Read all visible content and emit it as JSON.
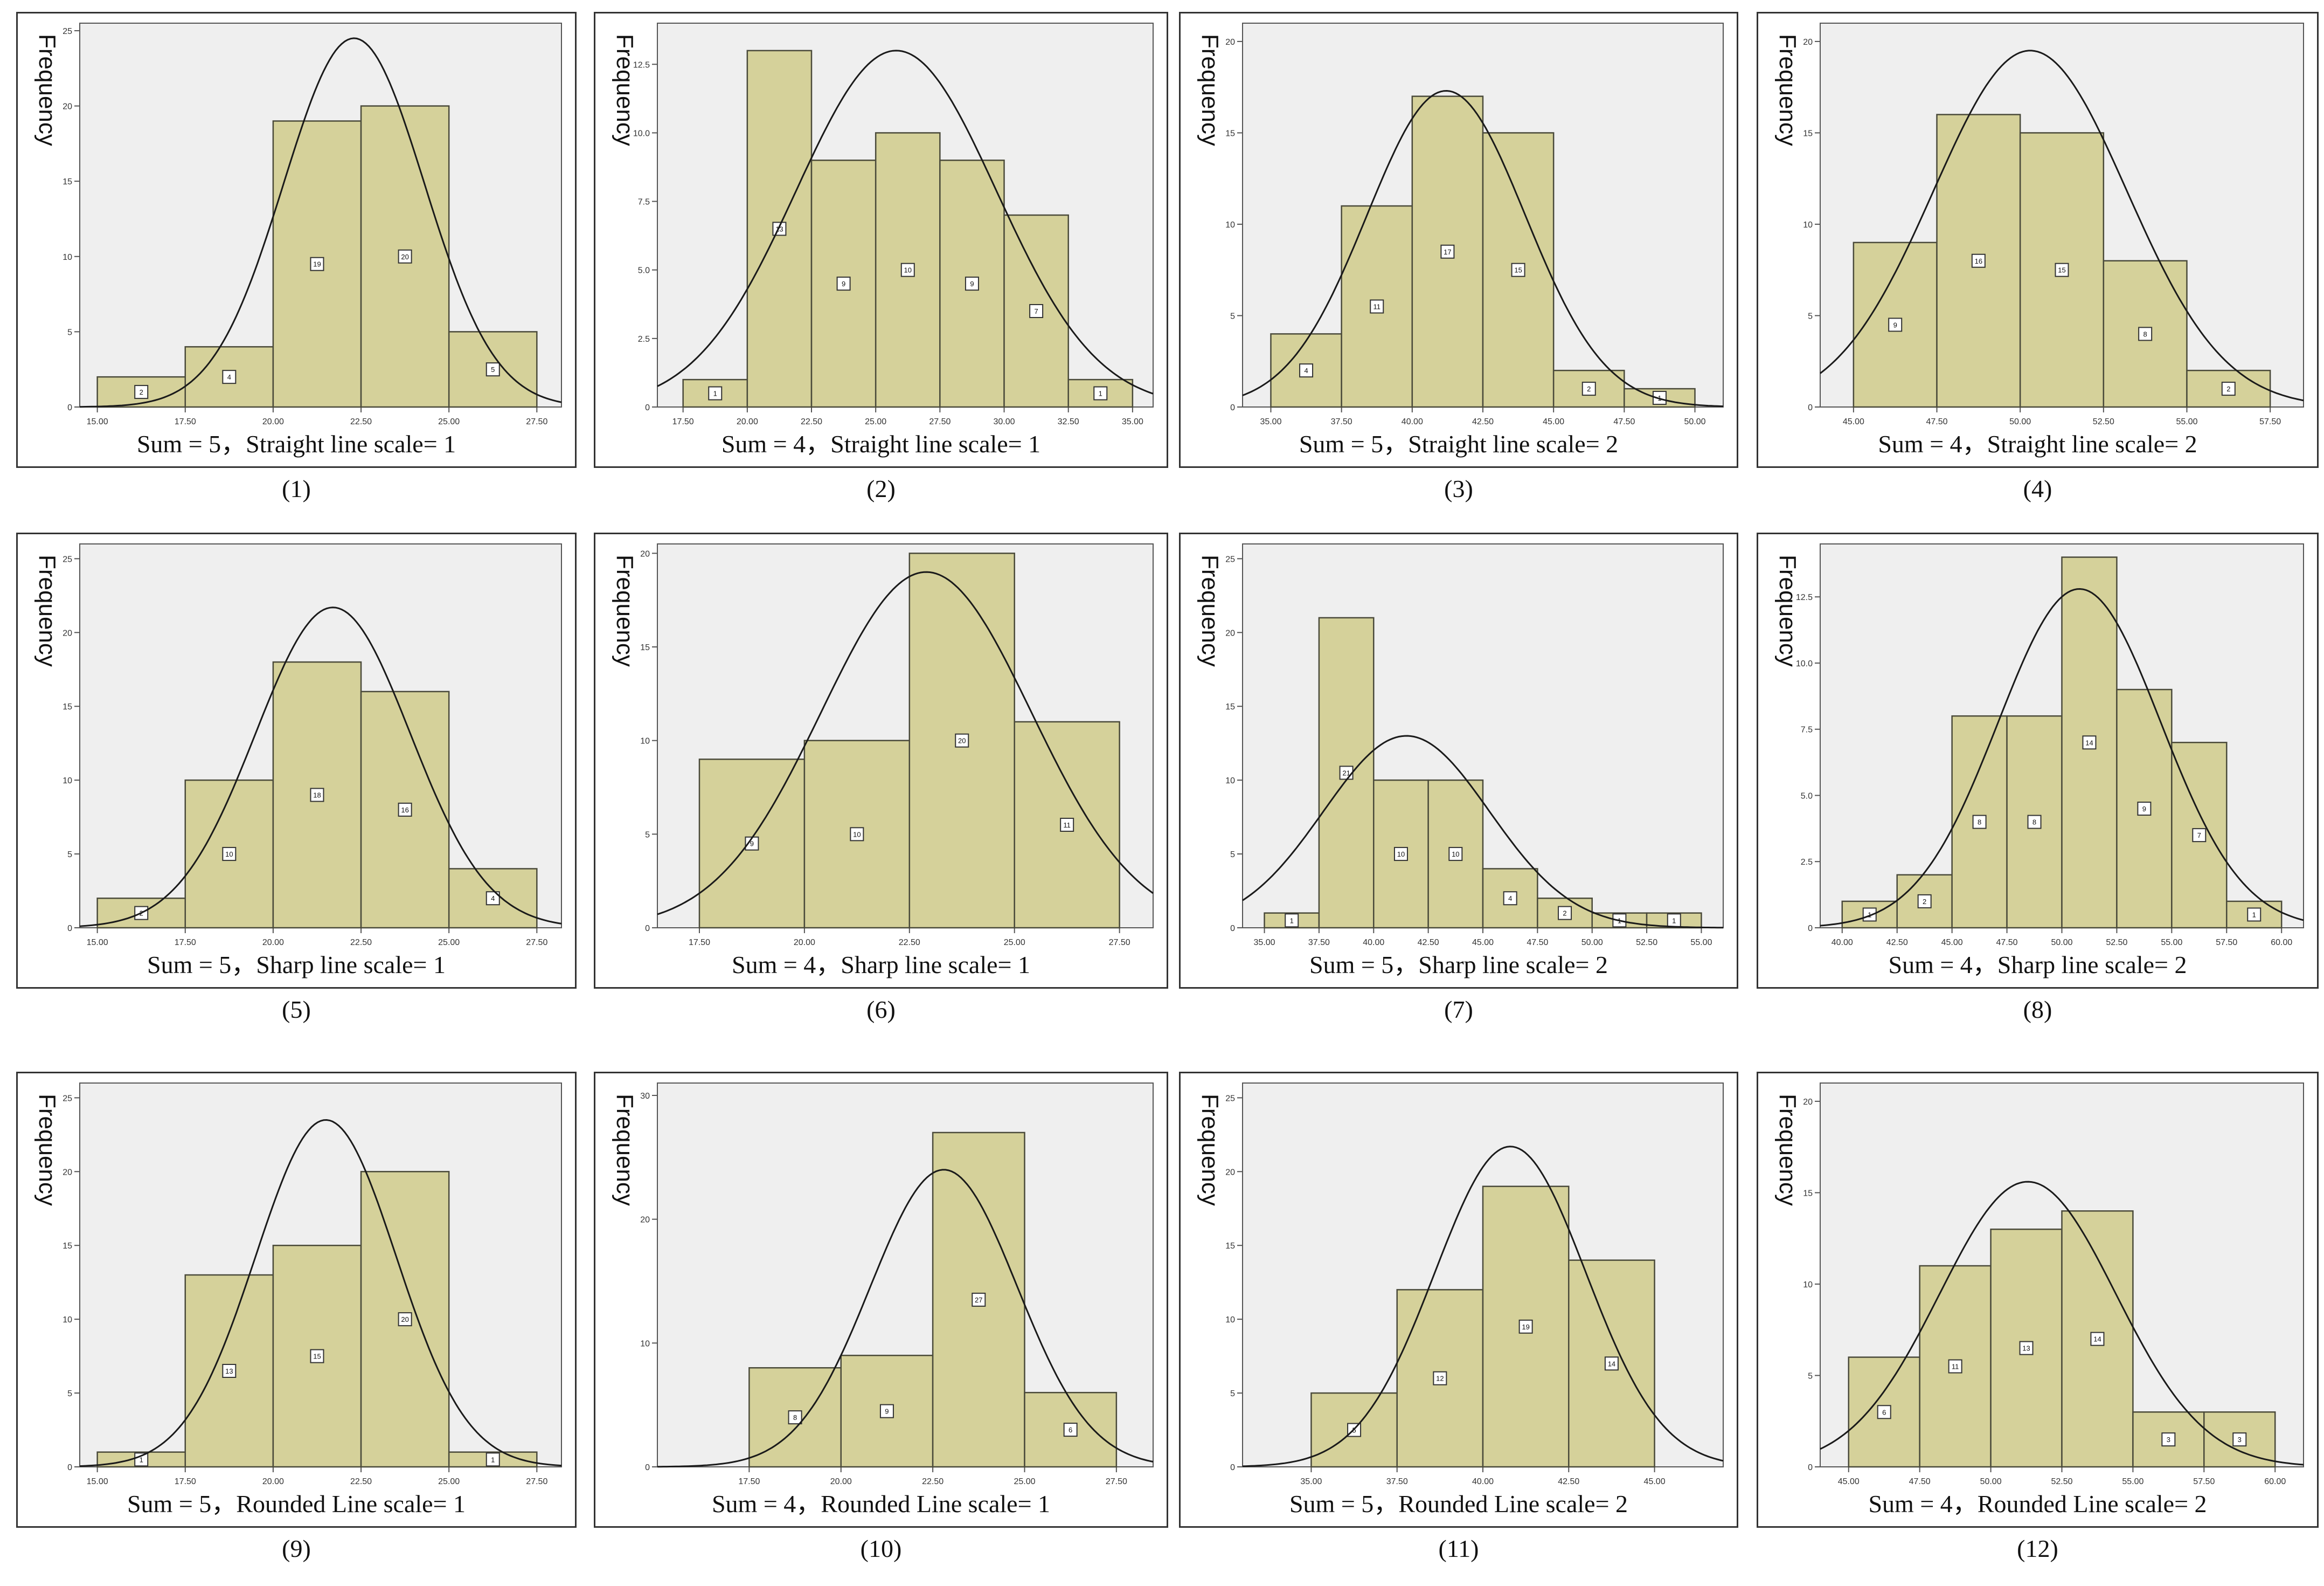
{
  "figure": {
    "colors": {
      "bar_fill": "#d5d19a",
      "bar_stroke": "#4a4a3a",
      "plot_bg": "#efefef",
      "curve": "#1a1a1a",
      "axis": "#555555",
      "frame": "#333333"
    },
    "y_axis_label": "Frequency"
  },
  "panels": [
    {
      "number": "(1)",
      "caption": "Sum = 5，Straight line scale= 1"
    },
    {
      "number": "(2)",
      "caption": "Sum = 4，Straight line scale= 1"
    },
    {
      "number": "(3)",
      "caption": "Sum = 5，Straight line scale= 2"
    },
    {
      "number": "(4)",
      "caption": "Sum = 4，Straight line scale= 2"
    },
    {
      "number": "(5)",
      "caption": "Sum = 5，Sharp line scale= 1"
    },
    {
      "number": "(6)",
      "caption": "Sum = 4，Sharp line scale= 1"
    },
    {
      "number": "(7)",
      "caption": "Sum = 5，Sharp line scale= 2"
    },
    {
      "number": "(8)",
      "caption": "Sum = 4，Sharp line scale= 2"
    },
    {
      "number": "(9)",
      "caption": "Sum = 5，Rounded Line scale= 1"
    },
    {
      "number": "(10)",
      "caption": "Sum = 4，Rounded Line scale= 1"
    },
    {
      "number": "(11)",
      "caption": "Sum = 5，Rounded Line scale= 2"
    },
    {
      "number": "(12)",
      "caption": "Sum = 4，Rounded Line scale= 2"
    }
  ],
  "chart_data": [
    {
      "type": "bar",
      "panel": "(1)",
      "ylabel": "Frequency",
      "xlim": [
        14.5,
        28.2
      ],
      "ylim": [
        0,
        25.5
      ],
      "xticks": [
        "15.00",
        "17.50",
        "20.00",
        "22.50",
        "25.00",
        "27.50"
      ],
      "xtick_values": [
        15,
        17.5,
        20,
        22.5,
        25,
        27.5
      ],
      "yticks": [
        "0",
        "5",
        "10",
        "15",
        "20",
        "25"
      ],
      "ytick_values": [
        0,
        5,
        10,
        15,
        20,
        25
      ],
      "bin_edges": [
        15,
        17.5,
        20,
        22.5,
        25,
        27.5
      ],
      "values": [
        2,
        4,
        19,
        20,
        5
      ],
      "value_labels": [
        "2",
        "4",
        "19",
        "20",
        "5"
      ],
      "curve": {
        "mean": 22.3,
        "sd": 2.0,
        "peak": 24.5
      }
    },
    {
      "type": "bar",
      "panel": "(2)",
      "ylabel": "Frequency",
      "xlim": [
        16.5,
        35.8
      ],
      "ylim": [
        0,
        14
      ],
      "xticks": [
        "17.50",
        "20.00",
        "22.50",
        "25.00",
        "27.50",
        "30.00",
        "32.50",
        "35.00"
      ],
      "xtick_values": [
        17.5,
        20,
        22.5,
        25,
        27.5,
        30,
        32.5,
        35
      ],
      "yticks": [
        "0",
        "2.5",
        "5.0",
        "7.5",
        "10.0",
        "12.5"
      ],
      "ytick_values": [
        0,
        2.5,
        5,
        7.5,
        10,
        12.5
      ],
      "bin_edges": [
        17.5,
        20,
        22.5,
        25,
        27.5,
        30,
        32.5,
        35
      ],
      "values": [
        1,
        13,
        9,
        10,
        9,
        7,
        1
      ],
      "value_labels": [
        "1",
        "13",
        "9",
        "10",
        "9",
        "7",
        "1"
      ],
      "curve": {
        "mean": 25.8,
        "sd": 3.9,
        "peak": 13.0
      }
    },
    {
      "type": "bar",
      "panel": "(3)",
      "ylabel": "Frequency",
      "xlim": [
        34.0,
        51.0
      ],
      "ylim": [
        0,
        21
      ],
      "xticks": [
        "35.00",
        "37.50",
        "40.00",
        "42.50",
        "45.00",
        "47.50",
        "50.00"
      ],
      "xtick_values": [
        35,
        37.5,
        40,
        42.5,
        45,
        47.5,
        50
      ],
      "yticks": [
        "0",
        "5",
        "10",
        "15",
        "20"
      ],
      "ytick_values": [
        0,
        5,
        10,
        15,
        20
      ],
      "bin_edges": [
        35,
        37.5,
        40,
        42.5,
        45,
        47.5,
        50
      ],
      "values": [
        4,
        11,
        17,
        15,
        2,
        1
      ],
      "value_labels": [
        "4",
        "11",
        "17",
        "15",
        "2",
        "1"
      ],
      "curve": {
        "mean": 41.2,
        "sd": 2.8,
        "peak": 17.3
      }
    },
    {
      "type": "bar",
      "panel": "(4)",
      "ylabel": "Frequency",
      "xlim": [
        44.0,
        58.5
      ],
      "ylim": [
        0,
        21
      ],
      "xticks": [
        "45.00",
        "47.50",
        "50.00",
        "52.50",
        "55.00",
        "57.50"
      ],
      "xtick_values": [
        45,
        47.5,
        50,
        52.5,
        55,
        57.5
      ],
      "yticks": [
        "0",
        "5",
        "10",
        "15",
        "20"
      ],
      "ytick_values": [
        0,
        5,
        10,
        15,
        20
      ],
      "bin_edges": [
        45,
        47.5,
        50,
        52.5,
        55,
        57.5
      ],
      "values": [
        9,
        16,
        15,
        8,
        2
      ],
      "value_labels": [
        "9",
        "16",
        "15",
        "8",
        "2"
      ],
      "curve": {
        "mean": 50.3,
        "sd": 2.9,
        "peak": 19.5
      }
    },
    {
      "type": "bar",
      "panel": "(5)",
      "ylabel": "Frequency",
      "xlim": [
        14.5,
        28.2
      ],
      "ylim": [
        0,
        26
      ],
      "xticks": [
        "15.00",
        "17.50",
        "20.00",
        "22.50",
        "25.00",
        "27.50"
      ],
      "xtick_values": [
        15,
        17.5,
        20,
        22.5,
        25,
        27.5
      ],
      "yticks": [
        "0",
        "5",
        "10",
        "15",
        "20",
        "25"
      ],
      "ytick_values": [
        0,
        5,
        10,
        15,
        20,
        25
      ],
      "bin_edges": [
        15,
        17.5,
        20,
        22.5,
        25,
        27.5
      ],
      "values": [
        2,
        10,
        18,
        16,
        4
      ],
      "value_labels": [
        "2",
        "10",
        "18",
        "16",
        "4"
      ],
      "curve": {
        "mean": 21.7,
        "sd": 2.2,
        "peak": 21.7
      }
    },
    {
      "type": "bar",
      "panel": "(6)",
      "ylabel": "Frequency",
      "xlim": [
        16.5,
        28.3
      ],
      "ylim": [
        0,
        20.5
      ],
      "xticks": [
        "17.50",
        "20.00",
        "22.50",
        "25.00",
        "27.50"
      ],
      "xtick_values": [
        17.5,
        20,
        22.5,
        25,
        27.5
      ],
      "yticks": [
        "0",
        "5",
        "10",
        "15",
        "20"
      ],
      "ytick_values": [
        0,
        5,
        10,
        15,
        20
      ],
      "bin_edges": [
        17.5,
        20,
        22.5,
        25,
        27.5
      ],
      "values": [
        9,
        10,
        20,
        11
      ],
      "value_labels": [
        "9",
        "10",
        "20",
        "11"
      ],
      "curve": {
        "mean": 22.9,
        "sd": 2.5,
        "peak": 19.0
      }
    },
    {
      "type": "bar",
      "panel": "(7)",
      "ylabel": "Frequency",
      "xlim": [
        34.0,
        56.0
      ],
      "ylim": [
        0,
        26
      ],
      "xticks": [
        "35.00",
        "37.50",
        "40.00",
        "42.50",
        "45.00",
        "47.50",
        "50.00",
        "52.50",
        "55.00"
      ],
      "xtick_values": [
        35,
        37.5,
        40,
        42.5,
        45,
        47.5,
        50,
        52.5,
        55
      ],
      "yticks": [
        "0",
        "5",
        "10",
        "15",
        "20",
        "25"
      ],
      "ytick_values": [
        0,
        5,
        10,
        15,
        20,
        25
      ],
      "bin_edges": [
        35,
        37.5,
        40,
        42.5,
        45,
        47.5,
        50,
        52.5,
        55
      ],
      "values": [
        1,
        21,
        10,
        10,
        4,
        2,
        1,
        1
      ],
      "value_labels": [
        "1",
        "21",
        "10",
        "10",
        "4",
        "2",
        "1",
        "1"
      ],
      "curve": {
        "mean": 41.5,
        "sd": 3.8,
        "peak": 13.0
      }
    },
    {
      "type": "bar",
      "panel": "(8)",
      "ylabel": "Frequency",
      "xlim": [
        39.0,
        61.0
      ],
      "ylim": [
        0,
        14.5
      ],
      "xticks": [
        "40.00",
        "42.50",
        "45.00",
        "47.50",
        "50.00",
        "52.50",
        "55.00",
        "57.50",
        "60.00"
      ],
      "xtick_values": [
        40,
        42.5,
        45,
        47.5,
        50,
        52.5,
        55,
        57.5,
        60
      ],
      "yticks": [
        "0",
        "2.5",
        "5.0",
        "7.5",
        "10.0",
        "12.5"
      ],
      "ytick_values": [
        0,
        2.5,
        5,
        7.5,
        10,
        12.5
      ],
      "bin_edges": [
        40,
        42.5,
        45,
        47.5,
        50,
        52.5,
        55,
        57.5,
        60
      ],
      "values": [
        1,
        2,
        8,
        8,
        14,
        9,
        7,
        1
      ],
      "value_labels": [
        "1",
        "2",
        "8",
        "8",
        "14",
        "9",
        "7",
        "1"
      ],
      "curve": {
        "mean": 50.8,
        "sd": 3.7,
        "peak": 12.8
      }
    },
    {
      "type": "bar",
      "panel": "(9)",
      "ylabel": "Frequency",
      "xlim": [
        14.5,
        28.2
      ],
      "ylim": [
        0,
        26
      ],
      "xticks": [
        "15.00",
        "17.50",
        "20.00",
        "22.50",
        "25.00",
        "27.50"
      ],
      "xtick_values": [
        15,
        17.5,
        20,
        22.5,
        25,
        27.5
      ],
      "yticks": [
        "0",
        "5",
        "10",
        "15",
        "20",
        "25"
      ],
      "ytick_values": [
        0,
        5,
        10,
        15,
        20,
        25
      ],
      "bin_edges": [
        15,
        17.5,
        20,
        22.5,
        25,
        27.5
      ],
      "values": [
        1,
        13,
        15,
        20,
        1
      ],
      "value_labels": [
        "1",
        "13",
        "15",
        "20",
        "1"
      ],
      "curve": {
        "mean": 21.5,
        "sd": 2.0,
        "peak": 23.5
      }
    },
    {
      "type": "bar",
      "panel": "(10)",
      "ylabel": "Frequency",
      "xlim": [
        15.0,
        28.5
      ],
      "ylim": [
        0,
        31
      ],
      "xticks": [
        "17.50",
        "20.00",
        "22.50",
        "25.00",
        "27.50"
      ],
      "xtick_values": [
        17.5,
        20,
        22.5,
        25,
        27.5
      ],
      "yticks": [
        "0",
        "10",
        "20",
        "30"
      ],
      "ytick_values": [
        0,
        10,
        20,
        30
      ],
      "bin_edges": [
        17.5,
        20,
        22.5,
        25,
        27.5
      ],
      "values": [
        8,
        9,
        27,
        6
      ],
      "value_labels": [
        "8",
        "9",
        "27",
        "6"
      ],
      "curve": {
        "mean": 22.8,
        "sd": 2.0,
        "peak": 24.0
      }
    },
    {
      "type": "bar",
      "panel": "(11)",
      "ylabel": "Frequency",
      "xlim": [
        33.0,
        47.0
      ],
      "ylim": [
        0,
        26
      ],
      "xticks": [
        "35.00",
        "37.50",
        "40.00",
        "42.50",
        "45.00"
      ],
      "xtick_values": [
        35,
        37.5,
        40,
        42.5,
        45
      ],
      "yticks": [
        "0",
        "5",
        "10",
        "15",
        "20",
        "25"
      ],
      "ytick_values": [
        0,
        5,
        10,
        15,
        20,
        25
      ],
      "bin_edges": [
        35,
        37.5,
        40,
        42.5,
        45
      ],
      "values": [
        5,
        12,
        19,
        14
      ],
      "value_labels": [
        "5",
        "12",
        "19",
        "14"
      ],
      "curve": {
        "mean": 40.8,
        "sd": 2.2,
        "peak": 21.7
      }
    },
    {
      "type": "bar",
      "panel": "(12)",
      "ylabel": "Frequency",
      "xlim": [
        44.0,
        61.0
      ],
      "ylim": [
        0,
        21
      ],
      "xticks": [
        "45.00",
        "47.50",
        "50.00",
        "52.50",
        "55.00",
        "57.50",
        "60.00"
      ],
      "xtick_values": [
        45,
        47.5,
        50,
        52.5,
        55,
        57.5,
        60
      ],
      "yticks": [
        "0",
        "5",
        "10",
        "15",
        "20"
      ],
      "ytick_values": [
        0,
        5,
        10,
        15,
        20
      ],
      "bin_edges": [
        45,
        47.5,
        50,
        52.5,
        55,
        57.5,
        60
      ],
      "values": [
        6,
        11,
        13,
        14,
        3,
        3
      ],
      "value_labels": [
        "6",
        "11",
        "13",
        "14",
        "3",
        "3"
      ],
      "curve": {
        "mean": 51.3,
        "sd": 3.1,
        "peak": 15.6
      }
    }
  ]
}
